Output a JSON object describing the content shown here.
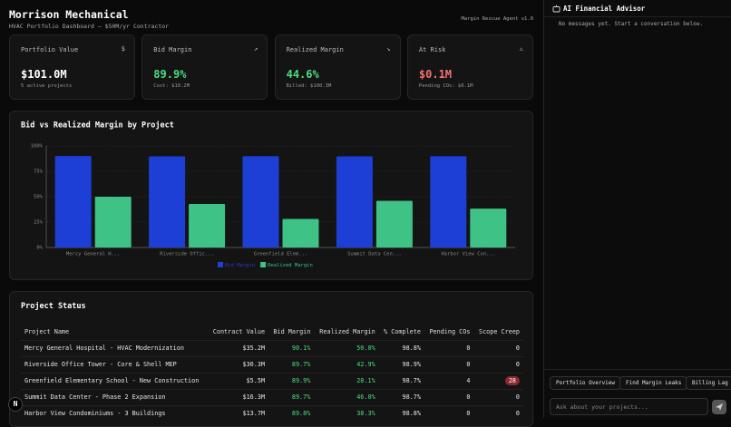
{
  "header": {
    "title": "Morrison Mechanical",
    "subtitle": "HVAC Portfolio Dashboard — $50M/yr Contractor",
    "badge": "Margin Rescue Agent v1.0"
  },
  "cards": [
    {
      "label": "Portfolio Value",
      "icon": "$",
      "value": "$101.0M",
      "note": "5 active projects"
    },
    {
      "label": "Bid Margin",
      "icon": "↗",
      "value": "89.9%",
      "note": "Cost: $10.2M"
    },
    {
      "label": "Realized Margin",
      "icon": "↘",
      "value": "44.6%",
      "note": "Billed: $100.3M"
    },
    {
      "label": "At Risk",
      "icon": "⚠",
      "value": "$0.1M",
      "note": "Pending COs: $0.1M"
    }
  ],
  "chart_data": {
    "type": "bar",
    "title": "Bid vs Realized Margin by Project",
    "categories": [
      "Mercy General H...",
      "Riverside Offic...",
      "Greenfield Elem...",
      "Summit Data Cen...",
      "Harbor View Con..."
    ],
    "series": [
      {
        "name": "Bid Margin",
        "color": "#1d3fd6",
        "values": [
          90.1,
          89.7,
          89.9,
          89.7,
          89.8
        ]
      },
      {
        "name": "Realized Margin",
        "color": "#3ec286",
        "values": [
          50.0,
          42.9,
          28.1,
          46.0,
          38.3
        ]
      }
    ],
    "ylim": [
      0,
      100
    ],
    "yticks": [
      {
        "value": 0,
        "label": "0%"
      },
      {
        "value": 25,
        "label": "25%"
      },
      {
        "value": 50,
        "label": "50%"
      },
      {
        "value": 75,
        "label": "75%"
      },
      {
        "value": 100,
        "label": "100%"
      }
    ],
    "grid": true
  },
  "table": {
    "title": "Project Status",
    "columns": [
      "Project Name",
      "Contract Value",
      "Bid Margin",
      "Realized Margin",
      "% Complete",
      "Pending COs",
      "Scope Creep"
    ],
    "rows": [
      [
        "Mercy General Hospital - HVAC Modernization",
        "$35.2M",
        "90.1%",
        "50.0%",
        "98.8%",
        "0",
        "0"
      ],
      [
        "Riverside Office Tower - Core & Shell MEP",
        "$30.3M",
        "89.7%",
        "42.9%",
        "98.9%",
        "0",
        "0"
      ],
      [
        "Greenfield Elementary School - New Construction",
        "$5.5M",
        "89.9%",
        "28.1%",
        "98.7%",
        "4",
        "28"
      ],
      [
        "Summit Data Center - Phase 2 Expansion",
        "$16.3M",
        "89.7%",
        "46.0%",
        "98.7%",
        "0",
        "0"
      ],
      [
        "Harbor View Condominiums - 3 Buildings",
        "$13.7M",
        "89.8%",
        "38.3%",
        "98.8%",
        "0",
        "0"
      ]
    ]
  },
  "sidebar": {
    "title": "AI Financial Advisor",
    "empty": "No messages yet. Start a conversation below.",
    "suggestions": [
      "Portfolio Overview",
      "Find Margin Leaks",
      "Billing Lag"
    ],
    "placeholder": "Ask about your projects..."
  },
  "dev_badge": "N"
}
